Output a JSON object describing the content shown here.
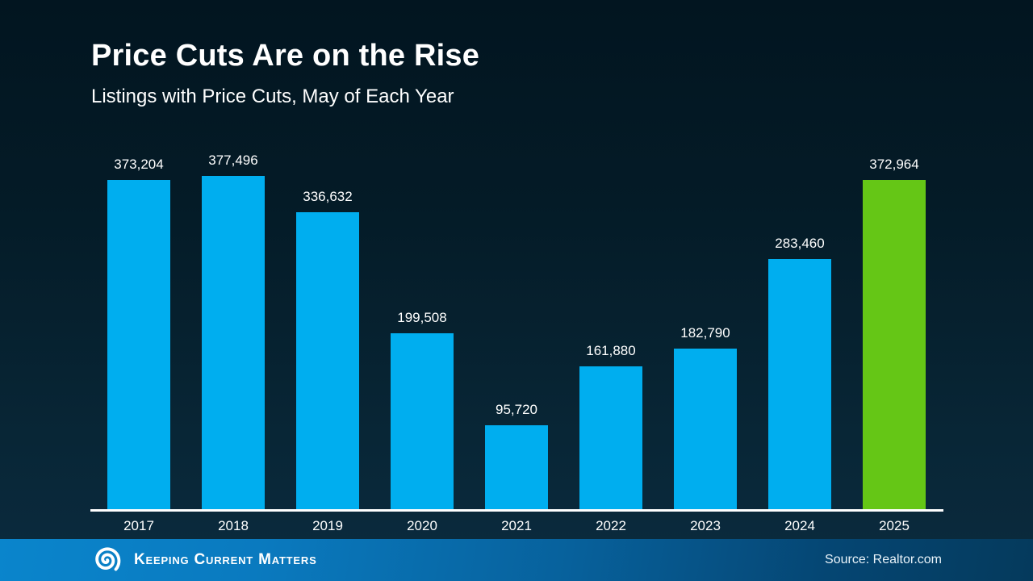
{
  "header": {
    "title": "Price Cuts Are on the Rise",
    "subtitle": "Listings with Price Cuts, May of Each Year"
  },
  "chart_data": {
    "type": "bar",
    "title": "Price Cuts Are on the Rise",
    "subtitle": "Listings with Price Cuts, May of Each Year",
    "categories": [
      "2017",
      "2018",
      "2019",
      "2020",
      "2021",
      "2022",
      "2023",
      "2024",
      "2025"
    ],
    "values": [
      373204,
      377496,
      336632,
      199508,
      95720,
      161880,
      182790,
      283460,
      372964
    ],
    "value_labels": [
      "373,204",
      "377,496",
      "336,632",
      "199,508",
      "95,720",
      "161,880",
      "182,790",
      "283,460",
      "372,964"
    ],
    "highlight_category": "2025",
    "xlabel": "",
    "ylabel": "",
    "ylim": [
      0,
      400000
    ],
    "grid": false,
    "legend": false,
    "value_labels_position": "above-bars"
  },
  "colors": {
    "bar_default": "#00AEEF",
    "bar_highlight": "#65C616",
    "text": "#FFFFFF",
    "axis_line": "#FFFFFF",
    "background_top": "#021520",
    "background_bottom": "#0B2B3F",
    "footer_left": "#0A85CC",
    "footer_right": "#053A5C"
  },
  "footer": {
    "brand": "Keeping Current Matters",
    "logo_icon": "spiral-icon",
    "source": "Source: Realtor.com"
  }
}
